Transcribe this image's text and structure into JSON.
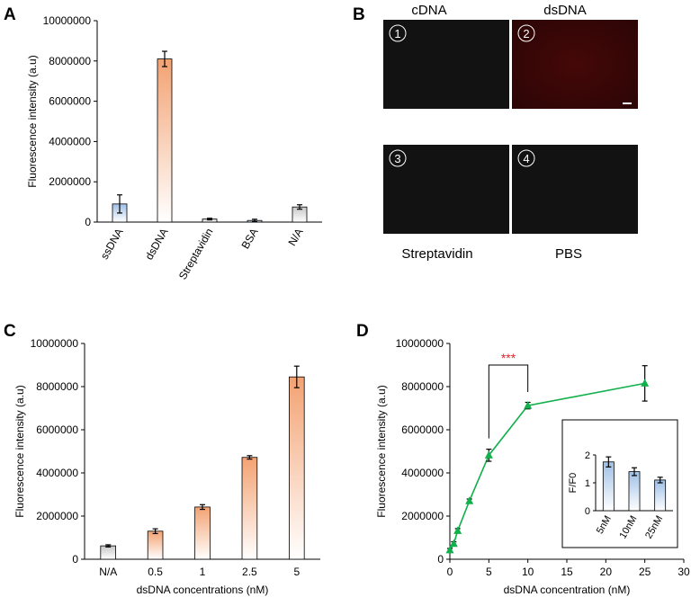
{
  "panels": {
    "a": "A",
    "b": "B",
    "c": "C",
    "d": "D"
  },
  "colors": {
    "blue_bar": "#aecbeb",
    "orange_bar": "#f3a97a",
    "grey_bar": "#c9c9c9",
    "green": "#10b04a",
    "sig": "#e0262f",
    "image_dark": "#121212",
    "image_red": "#3e0707"
  },
  "panel_b": {
    "col_labels": [
      "cDNA",
      "dsDNA"
    ],
    "bottom_labels": [
      "Streptavidin",
      "PBS"
    ],
    "images": [
      {
        "number": "1",
        "tint": "dark"
      },
      {
        "number": "2",
        "tint": "red"
      },
      {
        "number": "3",
        "tint": "dark"
      },
      {
        "number": "4",
        "tint": "dark"
      }
    ]
  },
  "chart_data": [
    {
      "panel": "A",
      "type": "bar",
      "ylabel": "Fluorescence intensity (a.u)",
      "ylim": [
        0,
        10000000
      ],
      "yticks": [
        0,
        2000000,
        4000000,
        6000000,
        8000000,
        10000000
      ],
      "categories": [
        "ssDNA",
        "dsDNA",
        "Streptavidin",
        "BSA",
        "N/A"
      ],
      "values": [
        900000,
        8100000,
        150000,
        80000,
        750000
      ],
      "errors": [
        450000,
        380000,
        40000,
        60000,
        110000
      ],
      "bar_colors": [
        "blue",
        "orange",
        "grey",
        "blue",
        "grey"
      ],
      "rotated_labels": true
    },
    {
      "panel": "C",
      "type": "bar",
      "ylabel": "Fluorescence intensity (a.u)",
      "xlabel": "dsDNA concentrations (nM)",
      "ylim": [
        0,
        10000000
      ],
      "yticks": [
        0,
        2000000,
        4000000,
        6000000,
        8000000,
        10000000
      ],
      "categories": [
        "N/A",
        "0.5",
        "1",
        "2.5",
        "5"
      ],
      "values": [
        620000,
        1300000,
        2420000,
        4720000,
        8450000
      ],
      "errors": [
        50000,
        110000,
        110000,
        80000,
        500000
      ],
      "bar_colors": [
        "grey",
        "orange",
        "orange",
        "orange",
        "orange"
      ],
      "rotated_labels": false
    },
    {
      "panel": "D",
      "type": "line",
      "ylabel": "Fluorescence intensity (a.u)",
      "xlabel": "dsDNA concentration (nM)",
      "xlim": [
        0,
        30
      ],
      "xticks": [
        0,
        5,
        10,
        15,
        20,
        25,
        30
      ],
      "ylim": [
        0,
        10000000
      ],
      "yticks": [
        0,
        2000000,
        4000000,
        6000000,
        8000000,
        10000000
      ],
      "x": [
        0,
        0.5,
        1,
        2.5,
        5,
        10,
        25
      ],
      "y": [
        420000,
        720000,
        1320000,
        2700000,
        4820000,
        7120000,
        8150000
      ],
      "errors": [
        80000,
        90000,
        100000,
        90000,
        280000,
        150000,
        820000
      ],
      "significance": {
        "label": "***",
        "x1": 5,
        "x2": 10
      }
    },
    {
      "panel": "D-inset",
      "type": "bar",
      "ylabel": "F/F0",
      "ylim": [
        0,
        2
      ],
      "yticks": [
        0,
        1,
        2
      ],
      "categories": [
        "5nM",
        "10nM",
        "25nM"
      ],
      "values": [
        1.75,
        1.4,
        1.1
      ],
      "errors": [
        0.18,
        0.14,
        0.1
      ],
      "bar_colors": [
        "blue",
        "blue",
        "blue"
      ]
    }
  ]
}
